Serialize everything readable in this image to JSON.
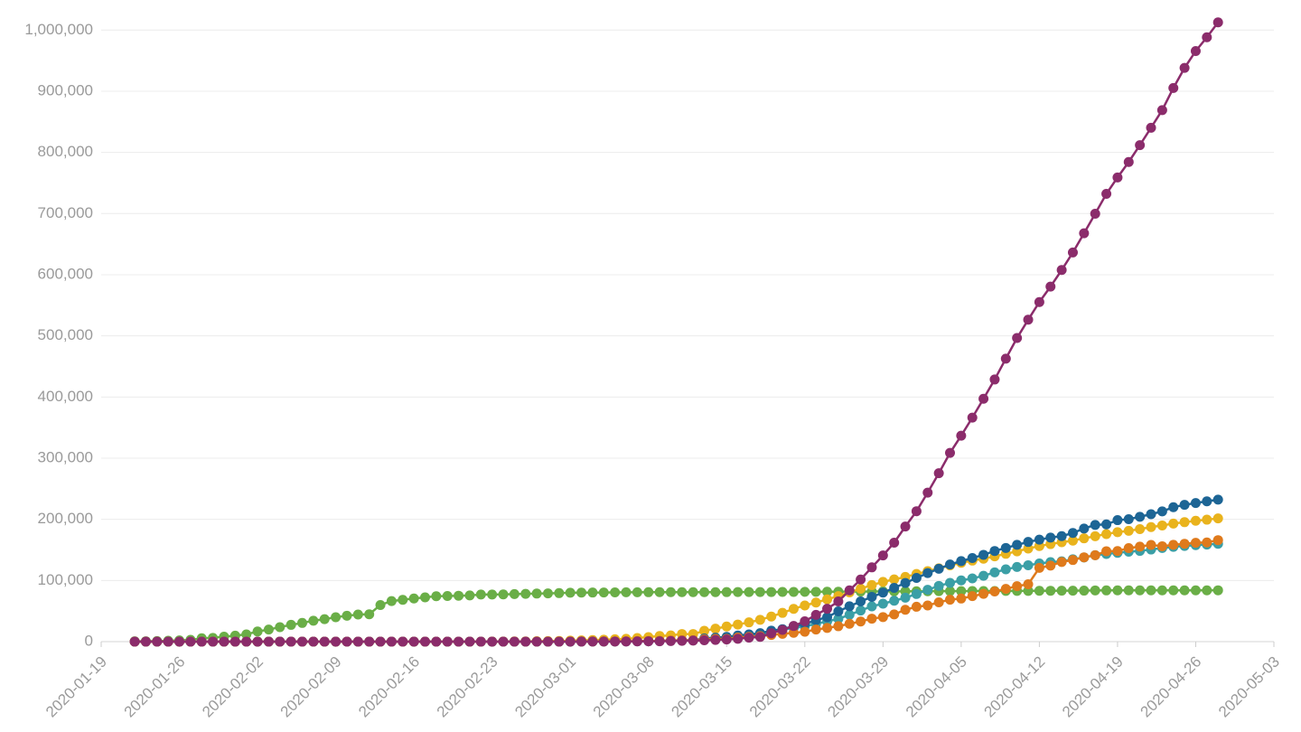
{
  "chart_data": {
    "type": "line",
    "grid": true,
    "markers": true,
    "x": [
      "2020-01-22",
      "2020-01-23",
      "2020-01-24",
      "2020-01-25",
      "2020-01-26",
      "2020-01-27",
      "2020-01-28",
      "2020-01-29",
      "2020-01-30",
      "2020-01-31",
      "2020-02-01",
      "2020-02-02",
      "2020-02-03",
      "2020-02-04",
      "2020-02-05",
      "2020-02-06",
      "2020-02-07",
      "2020-02-08",
      "2020-02-09",
      "2020-02-10",
      "2020-02-11",
      "2020-02-12",
      "2020-02-13",
      "2020-02-14",
      "2020-02-15",
      "2020-02-16",
      "2020-02-17",
      "2020-02-18",
      "2020-02-19",
      "2020-02-20",
      "2020-02-21",
      "2020-02-22",
      "2020-02-23",
      "2020-02-24",
      "2020-02-25",
      "2020-02-26",
      "2020-02-27",
      "2020-02-28",
      "2020-02-29",
      "2020-03-01",
      "2020-03-02",
      "2020-03-03",
      "2020-03-04",
      "2020-03-05",
      "2020-03-06",
      "2020-03-07",
      "2020-03-08",
      "2020-03-09",
      "2020-03-10",
      "2020-03-11",
      "2020-03-12",
      "2020-03-13",
      "2020-03-14",
      "2020-03-15",
      "2020-03-16",
      "2020-03-17",
      "2020-03-18",
      "2020-03-19",
      "2020-03-20",
      "2020-03-21",
      "2020-03-22",
      "2020-03-23",
      "2020-03-24",
      "2020-03-25",
      "2020-03-26",
      "2020-03-27",
      "2020-03-28",
      "2020-03-29",
      "2020-03-30",
      "2020-03-31",
      "2020-04-01",
      "2020-04-02",
      "2020-04-03",
      "2020-04-04",
      "2020-04-05",
      "2020-04-06",
      "2020-04-07",
      "2020-04-08",
      "2020-04-09",
      "2020-04-10",
      "2020-04-11",
      "2020-04-12",
      "2020-04-13",
      "2020-04-14",
      "2020-04-15",
      "2020-04-16",
      "2020-04-17",
      "2020-04-18",
      "2020-04-19",
      "2020-04-20",
      "2020-04-21",
      "2020-04-22",
      "2020-04-23",
      "2020-04-24",
      "2020-04-25",
      "2020-04-26",
      "2020-04-27",
      "2020-04-28"
    ],
    "xlim": [
      "2020-01-19",
      "2020-05-03"
    ],
    "xticks": [
      "2020-01-19",
      "2020-01-26",
      "2020-02-02",
      "2020-02-09",
      "2020-02-16",
      "2020-02-23",
      "2020-03-01",
      "2020-03-08",
      "2020-03-15",
      "2020-03-22",
      "2020-03-29",
      "2020-04-05",
      "2020-04-12",
      "2020-04-19",
      "2020-04-26",
      "2020-05-03"
    ],
    "ylim": [
      0,
      1030000
    ],
    "yticks": [
      0,
      {
        "value": 100000,
        "label": "100,000"
      },
      {
        "value": 200000,
        "label": "200,000"
      },
      {
        "value": 300000,
        "label": "300,000"
      },
      {
        "value": 400000,
        "label": "400,000"
      },
      {
        "value": 500000,
        "label": "500,000"
      },
      {
        "value": 600000,
        "label": "600,000"
      },
      {
        "value": 700000,
        "label": "700,000"
      },
      {
        "value": 800000,
        "label": "800,000"
      },
      {
        "value": 900000,
        "label": "900,000"
      },
      {
        "value": 1000000,
        "label": "1,000,000"
      }
    ],
    "series": [
      {
        "color": "#6aae47",
        "values": [
          548,
          643,
          920,
          1406,
          2075,
          2877,
          5509,
          6087,
          8141,
          9802,
          11891,
          16630,
          19716,
          23707,
          27440,
          30587,
          34110,
          36814,
          39829,
          42354,
          44386,
          44759,
          59895,
          66358,
          68413,
          70513,
          72434,
          74211,
          74619,
          75077,
          75550,
          77001,
          77022,
          77241,
          77754,
          78166,
          78600,
          78928,
          79356,
          79932,
          80136,
          80261,
          80386,
          80537,
          80690,
          80770,
          80823,
          80860,
          80887,
          80921,
          80932,
          80945,
          80977,
          81003,
          81033,
          81058,
          81102,
          81156,
          81250,
          81305,
          81435,
          81498,
          81591,
          81661,
          81782,
          81897,
          81999,
          82122,
          82198,
          82279,
          82361,
          82432,
          82511,
          82543,
          82602,
          82665,
          82718,
          82809,
          82883,
          82941,
          83014,
          83134,
          83213,
          83306,
          83356,
          83403,
          83760,
          83787,
          83805,
          83817,
          83853,
          83868,
          83884,
          83899,
          83909,
          83912,
          83918,
          83940
        ]
      },
      {
        "color": "#3b9fa6",
        "values": [
          0,
          0,
          0,
          0,
          0,
          1,
          4,
          4,
          4,
          5,
          8,
          10,
          12,
          12,
          12,
          12,
          13,
          13,
          14,
          14,
          16,
          16,
          16,
          16,
          16,
          16,
          16,
          16,
          16,
          16,
          16,
          16,
          16,
          16,
          16,
          16,
          18,
          26,
          48,
          130,
          159,
          196,
          262,
          482,
          670,
          799,
          1040,
          1176,
          1457,
          1908,
          2078,
          3675,
          4585,
          5795,
          7272,
          9257,
          12327,
          15320,
          19848,
          22213,
          24873,
          29056,
          32986,
          37323,
          43938,
          50871,
          57695,
          62095,
          66885,
          71808,
          77872,
          84794,
          91159,
          96092,
          100123,
          103374,
          107663,
          113296,
          118181,
          122171,
          124908,
          127854,
          130072,
          131359,
          134753,
          137698,
          141397,
          143342,
          145184,
          147065,
          148291,
          150648,
          153129,
          154999,
          156513,
          157770,
          158758,
          159912
        ]
      },
      {
        "color": "#e9b31d",
        "values": [
          0,
          0,
          0,
          0,
          0,
          0,
          0,
          0,
          0,
          2,
          2,
          2,
          2,
          2,
          2,
          2,
          3,
          3,
          3,
          3,
          3,
          3,
          3,
          3,
          3,
          3,
          3,
          3,
          3,
          3,
          20,
          62,
          155,
          229,
          322,
          453,
          655,
          888,
          1128,
          1694,
          2036,
          2502,
          3089,
          3858,
          4636,
          5883,
          7375,
          9172,
          10149,
          12462,
          12462,
          17660,
          21157,
          24747,
          27980,
          31506,
          35713,
          41035,
          47021,
          53578,
          59138,
          63927,
          69176,
          74386,
          80589,
          86498,
          92472,
          97689,
          101739,
          105792,
          110574,
          115242,
          119827,
          124632,
          128948,
          132547,
          135586,
          139422,
          143626,
          147577,
          152271,
          156363,
          159516,
          162488,
          165155,
          168941,
          172434,
          175925,
          178972,
          181228,
          183957,
          187327,
          189973,
          192994,
          195351,
          197675,
          199414,
          201505
        ]
      },
      {
        "color": "#1d6595",
        "values": [
          0,
          0,
          0,
          0,
          0,
          0,
          0,
          0,
          0,
          0,
          0,
          1,
          1,
          1,
          1,
          1,
          1,
          1,
          1,
          2,
          2,
          2,
          2,
          2,
          2,
          2,
          2,
          2,
          2,
          2,
          2,
          2,
          2,
          2,
          2,
          2,
          2,
          2,
          32,
          84,
          120,
          165,
          222,
          259,
          400,
          500,
          673,
          1073,
          1695,
          2277,
          2277,
          5232,
          6391,
          7798,
          9942,
          11748,
          13910,
          17963,
          20410,
          25374,
          28768,
          35136,
          39885,
          49515,
          57786,
          65719,
          73235,
          80110,
          87956,
          95923,
          104118,
          112065,
          119199,
          126168,
          131646,
          136675,
          141942,
          148220,
          153222,
          158273,
          163027,
          166831,
          170099,
          172541,
          177644,
          184948,
          190839,
          191726,
          198674,
          200210,
          204178,
          208389,
          213024,
          219764,
          223759,
          226629,
          229422,
          232128
        ]
      },
      {
        "color": "#df7a1c",
        "values": [
          0,
          0,
          2,
          3,
          3,
          3,
          4,
          5,
          5,
          5,
          6,
          6,
          6,
          6,
          6,
          6,
          6,
          11,
          11,
          11,
          11,
          11,
          11,
          11,
          12,
          12,
          12,
          12,
          12,
          12,
          12,
          12,
          12,
          12,
          14,
          18,
          38,
          57,
          100,
          130,
          191,
          204,
          288,
          380,
          656,
          957,
          1134,
          1217,
          1792,
          2290,
          2290,
          3678,
          4487,
          4523,
          6668,
          7699,
          9105,
          10947,
          12726,
          14431,
          16176,
          19856,
          22304,
          25233,
          29155,
          32964,
          37575,
          40174,
          44550,
          52128,
          56989,
          59105,
          64338,
          68605,
          70478,
          74390,
          78167,
          82048,
          86334,
          90676,
          93790,
          120633,
          124298,
          130253,
          133470,
          137875,
          141356,
          147863,
          148084,
          153011,
          155393,
          158168,
          155980,
          158303,
          159952,
          161644,
          162220,
          165963
        ]
      },
      {
        "color": "#8b2c6b",
        "values": [
          1,
          1,
          2,
          2,
          5,
          5,
          5,
          5,
          5,
          7,
          8,
          8,
          11,
          11,
          11,
          11,
          11,
          11,
          11,
          11,
          12,
          12,
          13,
          13,
          13,
          13,
          13,
          13,
          13,
          13,
          15,
          15,
          15,
          51,
          51,
          57,
          58,
          60,
          68,
          74,
          98,
          118,
          149,
          217,
          262,
          402,
          518,
          583,
          959,
          1281,
          1663,
          2179,
          2727,
          3499,
          4632,
          6421,
          7783,
          13747,
          19273,
          25600,
          33276,
          43847,
          53740,
          65778,
          83836,
          101657,
          121465,
          140909,
          161831,
          188172,
          213242,
          243622,
          275367,
          308650,
          336802,
          366317,
          397121,
          428654,
          462780,
          496535,
          526396,
          555313,
          580619,
          607670,
          636350,
          667801,
          699706,
          732197,
          759086,
          784326,
          811865,
          840351,
          869170,
          905358,
          938154,
          965785,
          988197,
          1012582
        ]
      }
    ]
  }
}
